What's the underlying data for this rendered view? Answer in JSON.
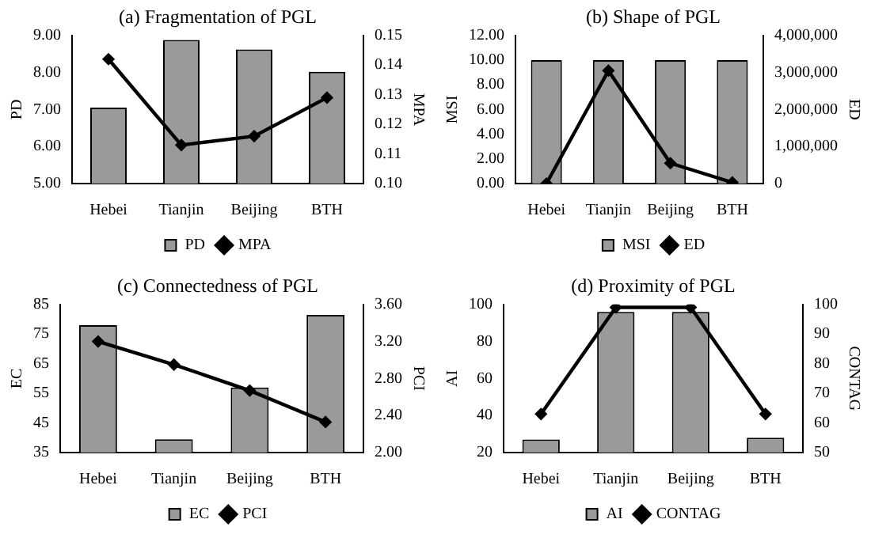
{
  "chart_data": [
    {
      "type": "bar",
      "title": "(a) Fragmentation of PGL",
      "ylabel": "PD",
      "y2label": "MPA",
      "categories": [
        "Hebei",
        "Tianjin",
        "Beijing",
        "BTH"
      ],
      "series": [
        {
          "name": "PD",
          "color": "#9a9a9a",
          "values": [
            7.05,
            8.88,
            8.62,
            8.02
          ]
        },
        {
          "name": "MPA",
          "type": "line",
          "axis": "y2",
          "color": "#000000",
          "values": [
            0.142,
            0.113,
            0.116,
            0.129
          ]
        }
      ],
      "ylim": [
        5,
        9
      ],
      "yticks": [
        {
          "value": 5,
          "label": "5.00"
        },
        {
          "value": 6,
          "label": "6.00"
        },
        {
          "value": 7,
          "label": "7.00"
        },
        {
          "value": 8,
          "label": "8.00"
        },
        {
          "value": 9,
          "label": "9.00"
        }
      ],
      "y2lim": [
        0.1,
        0.15
      ],
      "y2ticks": [
        {
          "value": 0.1,
          "label": "0.10"
        },
        0.11,
        0.12,
        0.13,
        0.14,
        0.15
      ],
      "legend": "bottom",
      "grid": false,
      "marker": "diamond"
    },
    {
      "type": "bar",
      "title": "(b) Shape of PGL",
      "ylabel": "MSI",
      "y2label": "ED",
      "categories": [
        "Hebei",
        "Tianjin",
        "Beijing",
        "BTH"
      ],
      "series": [
        {
          "name": "MSI",
          "color": "#9a9a9a",
          "values": [
            10,
            10,
            10,
            10
          ]
        },
        {
          "name": "ED",
          "type": "line",
          "axis": "y2",
          "color": "#000000",
          "values": [
            0,
            3050000,
            550000,
            30000
          ]
        }
      ],
      "ylim": [
        0,
        12
      ],
      "yticks": [
        {
          "value": 0,
          "label": "0.00"
        },
        {
          "value": 2,
          "label": "2.00"
        },
        {
          "value": 4,
          "label": "4.00"
        },
        {
          "value": 6,
          "label": "6.00"
        },
        {
          "value": 8,
          "label": "8.00"
        },
        {
          "value": 10,
          "label": "10.00"
        },
        {
          "value": 12,
          "label": "12.00"
        }
      ],
      "y2lim": [
        0,
        4000000
      ],
      "y2ticks": [
        0,
        {
          "value": 1000000,
          "label": "1,000,000"
        },
        {
          "value": 2000000,
          "label": "2,000,000"
        },
        {
          "value": 3000000,
          "label": "3,000,000"
        },
        {
          "value": 4000000,
          "label": "4,000,000"
        }
      ],
      "legend": "bottom",
      "grid": false,
      "marker": "diamond"
    },
    {
      "type": "bar",
      "title": "(c) Connectedness of PGL",
      "ylabel": "EC",
      "y2label": "PCI",
      "categories": [
        "Hebei",
        "Tianjin",
        "Beijing",
        "BTH"
      ],
      "series": [
        {
          "name": "EC",
          "color": "#9a9a9a",
          "values": [
            78,
            39.5,
            57,
            81.5
          ]
        },
        {
          "name": "PCI",
          "type": "line",
          "axis": "y2",
          "color": "#000000",
          "values": [
            3.2,
            2.95,
            2.67,
            2.33
          ]
        }
      ],
      "ylim": [
        35,
        85
      ],
      "yticks": [
        35,
        45,
        55,
        65,
        75,
        85
      ],
      "y2lim": [
        2,
        3.6
      ],
      "y2ticks": [
        {
          "value": 2,
          "label": "2.00"
        },
        {
          "value": 2.4,
          "label": "2.40"
        },
        {
          "value": 2.8,
          "label": "2.80"
        },
        {
          "value": 3.2,
          "label": "3.20"
        },
        {
          "value": 3.6,
          "label": "3.60"
        }
      ],
      "legend": "bottom",
      "grid": false,
      "marker": "diamond"
    },
    {
      "type": "bar",
      "title": "(d) Proximity of PGL",
      "ylabel": "AI",
      "y2label": "CONTAG",
      "categories": [
        "Hebei",
        "Tianjin",
        "Beijing",
        "BTH"
      ],
      "series": [
        {
          "name": "AI",
          "color": "#9a9a9a",
          "values": [
            27,
            96,
            96,
            28
          ]
        },
        {
          "name": "CONTAG",
          "type": "line",
          "axis": "y2",
          "color": "#000000",
          "values": [
            63,
            99,
            99,
            63
          ]
        }
      ],
      "ylim": [
        20,
        100
      ],
      "yticks": [
        20,
        40,
        60,
        80,
        100
      ],
      "y2lim": [
        50,
        100
      ],
      "y2ticks": [
        50,
        60,
        70,
        80,
        90,
        100
      ],
      "legend": "bottom",
      "grid": false,
      "marker": "diamond"
    }
  ]
}
